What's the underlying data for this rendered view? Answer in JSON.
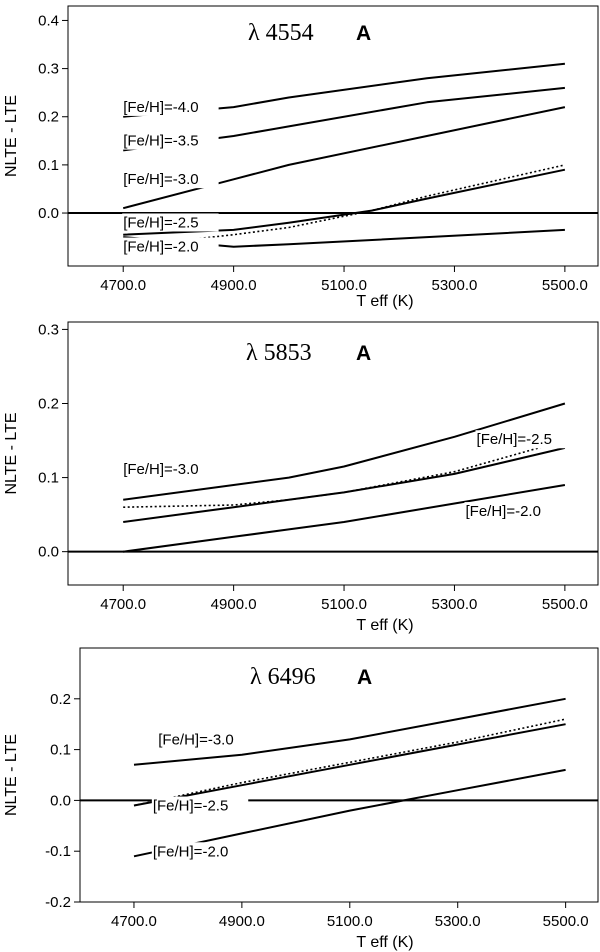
{
  "chart_data": [
    {
      "type": "line",
      "title": "λ 4554",
      "title_mark": "A",
      "xlabel": "T eff   (K)",
      "ylabel": "NLTE - LTE",
      "xlim": [
        4600,
        5560
      ],
      "ylim": [
        -0.11,
        0.43
      ],
      "xticks": [
        4700,
        4900,
        5100,
        5300,
        5500
      ],
      "xtick_labels": [
        "4700.0",
        "4900.0",
        "5100.0",
        "5300.0",
        "5500.0"
      ],
      "yticks": [
        0,
        0.1,
        0.2,
        0.3,
        0.4
      ],
      "ytick_labels": [
        "0.0",
        "0.1",
        "0.2",
        "0.3",
        "0.4"
      ],
      "reference_line": 0,
      "series": [
        {
          "name": "[Fe/H]=-4.0",
          "style": "solid",
          "x": [
            4700,
            4900,
            5000,
            5250,
            5500
          ],
          "y": [
            0.2,
            0.22,
            0.24,
            0.28,
            0.31
          ]
        },
        {
          "name": "[Fe/H]=-3.5",
          "style": "solid",
          "x": [
            4700,
            4900,
            5000,
            5250,
            5500
          ],
          "y": [
            0.13,
            0.16,
            0.18,
            0.23,
            0.26
          ]
        },
        {
          "name": "[Fe/H]=-3.0",
          "style": "solid",
          "x": [
            4700,
            4900,
            5000,
            5250,
            5500
          ],
          "y": [
            0.01,
            0.07,
            0.1,
            0.16,
            0.22
          ]
        },
        {
          "name": "[Fe/H]=-2.5",
          "style": "solid",
          "x": [
            4700,
            4900,
            5000,
            5150,
            5250,
            5500
          ],
          "y": [
            -0.045,
            -0.035,
            -0.02,
            0.005,
            0.03,
            0.09
          ]
        },
        {
          "name": "",
          "style": "dotted",
          "x": [
            4700,
            4900,
            5000,
            5150,
            5250,
            5500
          ],
          "y": [
            -0.07,
            -0.045,
            -0.03,
            0.005,
            0.035,
            0.1
          ]
        },
        {
          "name": "[Fe/H]=-2.0",
          "style": "solid",
          "x": [
            4700,
            4900,
            5000,
            5250,
            5500
          ],
          "y": [
            -0.05,
            -0.07,
            -0.065,
            -0.05,
            -0.035
          ]
        }
      ],
      "label_positions": [
        {
          "text": "[Fe/H]=-4.0",
          "x": 4700,
          "y": 0.21
        },
        {
          "text": "[Fe/H]=-3.5",
          "x": 4700,
          "y": 0.14
        },
        {
          "text": "[Fe/H]=-3.0",
          "x": 4700,
          "y": 0.06
        },
        {
          "text": "[Fe/H]=-2.5",
          "x": 4700,
          "y": -0.03
        },
        {
          "text": "[Fe/H]=-2.0",
          "x": 4700,
          "y": -0.08
        }
      ]
    },
    {
      "type": "line",
      "title": "λ 5853",
      "title_mark": "A",
      "xlabel": "T eff   (K)",
      "ylabel": "NLTE - LTE",
      "xlim": [
        4600,
        5560
      ],
      "ylim": [
        -0.045,
        0.31
      ],
      "xticks": [
        4700,
        4900,
        5100,
        5300,
        5500
      ],
      "xtick_labels": [
        "4700.0",
        "4900.0",
        "5100.0",
        "5300.0",
        "5500.0"
      ],
      "yticks": [
        0,
        0.1,
        0.2,
        0.3
      ],
      "ytick_labels": [
        "0.0",
        "0.1",
        "0.2",
        "0.3"
      ],
      "reference_line": 0,
      "series": [
        {
          "name": "[Fe/H]=-3.0",
          "style": "solid",
          "x": [
            4700,
            4900,
            5000,
            5100,
            5300,
            5500
          ],
          "y": [
            0.07,
            0.09,
            0.1,
            0.115,
            0.155,
            0.2
          ]
        },
        {
          "name": "[Fe/H]=-2.5",
          "style": "solid",
          "x": [
            4700,
            4900,
            5000,
            5100,
            5300,
            5500
          ],
          "y": [
            0.04,
            0.06,
            0.07,
            0.08,
            0.105,
            0.14
          ]
        },
        {
          "name": "",
          "style": "dotted",
          "x": [
            4700,
            4900,
            5000,
            5100,
            5300,
            5500
          ],
          "y": [
            0.06,
            0.063,
            0.07,
            0.08,
            0.108,
            0.15
          ]
        },
        {
          "name": "[Fe/H]=-2.0",
          "style": "solid",
          "x": [
            4700,
            4900,
            5000,
            5100,
            5300,
            5500
          ],
          "y": [
            0.0,
            0.02,
            0.03,
            0.04,
            0.065,
            0.09
          ]
        }
      ],
      "label_positions": [
        {
          "text": "[Fe/H]=-3.0",
          "x": 4700,
          "y": 0.105
        },
        {
          "text": "[Fe/H]=-2.5",
          "x": 5340,
          "y": 0.145
        },
        {
          "text": "[Fe/H]=-2.0",
          "x": 5320,
          "y": 0.048
        }
      ]
    },
    {
      "type": "line",
      "title": "λ 6496",
      "title_mark": "A",
      "xlabel": "T eff   (K)",
      "ylabel": "NLTE - LTE",
      "xlim": [
        4600,
        5560
      ],
      "ylim": [
        -0.2,
        0.3
      ],
      "xticks": [
        4700,
        4900,
        5100,
        5300,
        5500
      ],
      "xtick_labels": [
        "4700.0",
        "4900.0",
        "5100.0",
        "5300.0",
        "5500.0"
      ],
      "yticks": [
        -0.2,
        -0.1,
        0,
        0.1,
        0.2
      ],
      "ytick_labels": [
        "-0.2",
        "-0.1",
        "0.0",
        "0.1",
        "0.2"
      ],
      "reference_line": 0,
      "series": [
        {
          "name": "[Fe/H]=-3.0",
          "style": "solid",
          "x": [
            4700,
            4900,
            5100,
            5300,
            5500
          ],
          "y": [
            0.07,
            0.09,
            0.12,
            0.16,
            0.2
          ]
        },
        {
          "name": "[Fe/H]=-2.5",
          "style": "solid",
          "x": [
            4700,
            4900,
            5100,
            5300,
            5500
          ],
          "y": [
            -0.01,
            0.03,
            0.07,
            0.11,
            0.15
          ]
        },
        {
          "name": "",
          "style": "dotted",
          "x": [
            4700,
            4900,
            5100,
            5300,
            5500
          ],
          "y": [
            -0.01,
            0.035,
            0.075,
            0.115,
            0.16
          ]
        },
        {
          "name": "[Fe/H]=-2.0",
          "style": "solid",
          "x": [
            4700,
            4900,
            5100,
            5300,
            5500
          ],
          "y": [
            -0.11,
            -0.065,
            -0.02,
            0.02,
            0.06
          ]
        }
      ],
      "label_positions": [
        {
          "text": "[Fe/H]=-3.0",
          "x": 4745,
          "y": 0.11
        },
        {
          "text": "[Fe/H]=-2.5",
          "x": 4735,
          "y": -0.02
        },
        {
          "text": "[Fe/H]=-2.0",
          "x": 4735,
          "y": -0.11
        }
      ]
    }
  ]
}
